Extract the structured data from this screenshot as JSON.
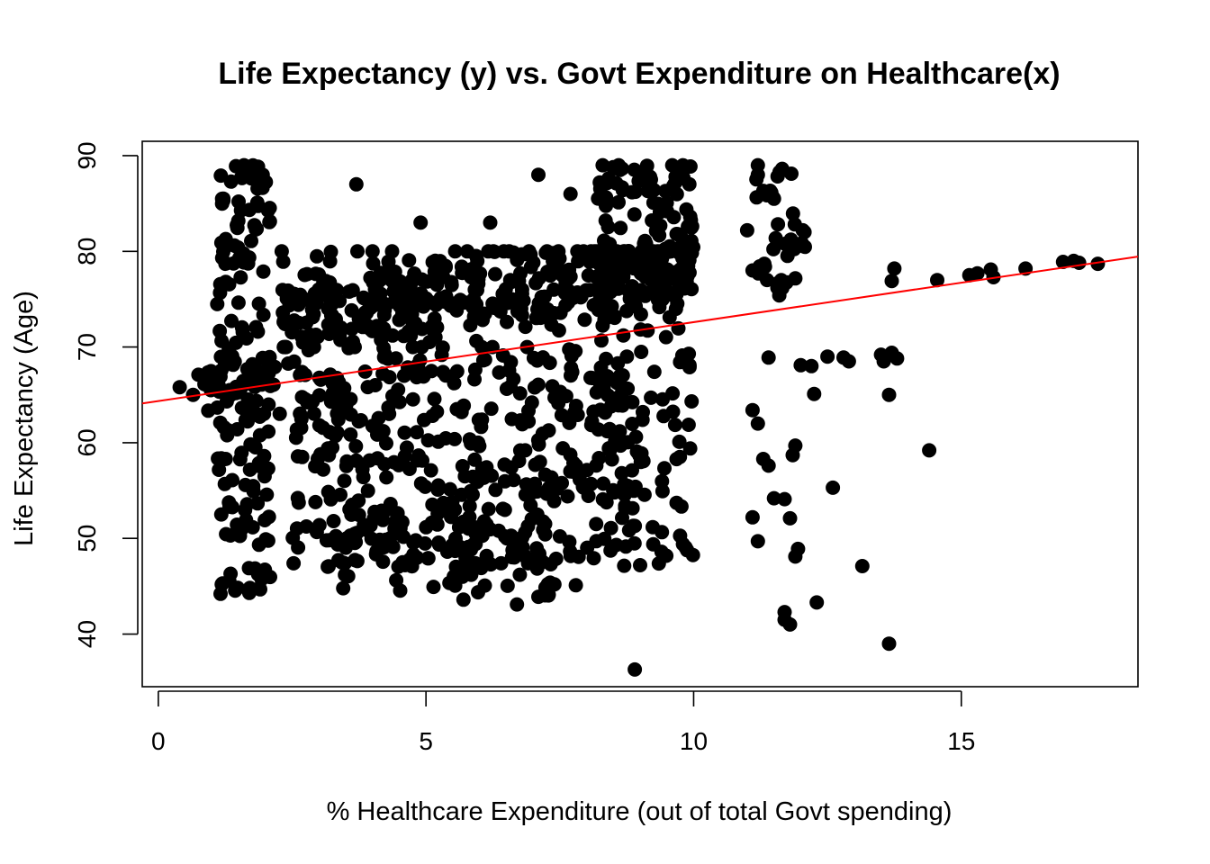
{
  "chart_data": {
    "type": "scatter",
    "title": "Life Expectancy (y) vs. Govt Expenditure on Healthcare(x)",
    "xlabel": "% Healthcare Expenditure (out of total Govt spending)",
    "ylabel": "Life Expectancy (Age)",
    "xlim": [
      -0.3,
      18.3
    ],
    "ylim": [
      34.5,
      91.5
    ],
    "xticks": [
      0,
      5,
      10,
      15
    ],
    "yticks": [
      40,
      50,
      60,
      70,
      80,
      90
    ],
    "grid": false,
    "legend": "none",
    "point_color": "#000000",
    "regression_line": {
      "color": "#ff0000",
      "intercept": 64.35,
      "slope": 0.825
    },
    "sample_note": "dense cloud; representative points listed, remaining points generated in script from described clusters",
    "points": [
      [
        0.4,
        65.8
      ],
      [
        0.65,
        65.0
      ],
      [
        0.75,
        67.1
      ],
      [
        1.2,
        45.3
      ],
      [
        1.35,
        46.3
      ],
      [
        1.45,
        88.9
      ],
      [
        1.6,
        89.0
      ],
      [
        1.7,
        44.3
      ],
      [
        1.95,
        88.0
      ],
      [
        3.7,
        87.0
      ],
      [
        4.9,
        83.0
      ],
      [
        5.7,
        43.6
      ],
      [
        6.2,
        83.0
      ],
      [
        6.7,
        43.1
      ],
      [
        7.1,
        88.0
      ],
      [
        7.1,
        43.9
      ],
      [
        7.7,
        86.0
      ],
      [
        7.8,
        45.1
      ],
      [
        8.3,
        89.0
      ],
      [
        8.6,
        89.0
      ],
      [
        8.9,
        36.3
      ],
      [
        8.9,
        51.3
      ],
      [
        9.0,
        47.2
      ],
      [
        9.4,
        48.6
      ],
      [
        9.6,
        89.0
      ],
      [
        9.8,
        89.0
      ],
      [
        9.8,
        49.4
      ],
      [
        11.0,
        82.2
      ],
      [
        11.1,
        78.0
      ],
      [
        11.1,
        63.4
      ],
      [
        11.1,
        52.2
      ],
      [
        11.2,
        88.0
      ],
      [
        11.2,
        89.0
      ],
      [
        11.2,
        62.0
      ],
      [
        11.2,
        49.7
      ],
      [
        11.3,
        58.3
      ],
      [
        11.4,
        57.6
      ],
      [
        11.4,
        68.9
      ],
      [
        11.5,
        54.2
      ],
      [
        11.6,
        75.4
      ],
      [
        11.7,
        42.3
      ],
      [
        11.7,
        41.5
      ],
      [
        11.7,
        54.1
      ],
      [
        11.8,
        52.1
      ],
      [
        11.8,
        41.0
      ],
      [
        11.85,
        58.7
      ],
      [
        11.9,
        59.7
      ],
      [
        11.9,
        48.1
      ],
      [
        11.95,
        48.9
      ],
      [
        12.0,
        68.1
      ],
      [
        12.2,
        68.0
      ],
      [
        12.25,
        65.1
      ],
      [
        12.3,
        43.3
      ],
      [
        12.5,
        69.0
      ],
      [
        12.6,
        55.3
      ],
      [
        12.8,
        68.9
      ],
      [
        12.9,
        68.5
      ],
      [
        13.15,
        47.1
      ],
      [
        13.5,
        69.2
      ],
      [
        13.55,
        68.5
      ],
      [
        13.65,
        39.0
      ],
      [
        13.65,
        65.0
      ],
      [
        13.7,
        69.4
      ],
      [
        13.7,
        76.9
      ],
      [
        13.75,
        78.2
      ],
      [
        13.8,
        68.8
      ],
      [
        14.4,
        59.2
      ],
      [
        14.55,
        77.0
      ],
      [
        15.15,
        77.5
      ],
      [
        15.3,
        77.7
      ],
      [
        15.55,
        78.1
      ],
      [
        15.6,
        77.3
      ],
      [
        16.2,
        78.2
      ],
      [
        16.9,
        78.9
      ],
      [
        17.1,
        79.0
      ],
      [
        17.2,
        78.8
      ],
      [
        17.55,
        78.7
      ]
    ]
  }
}
